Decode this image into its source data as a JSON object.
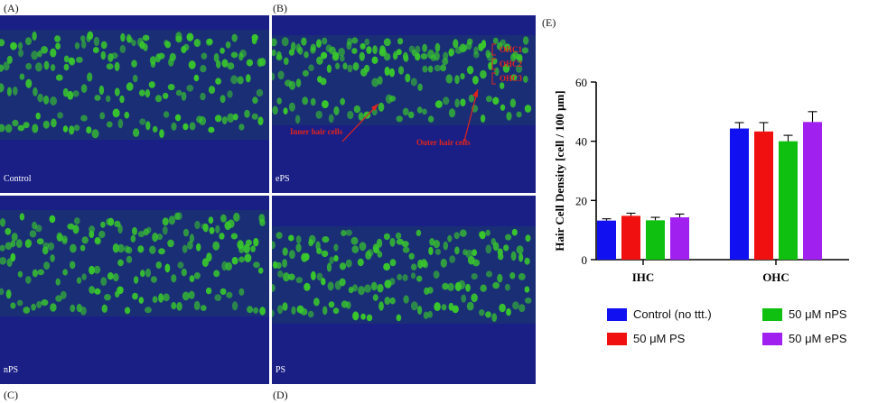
{
  "figure": {
    "panel_letters": {
      "A": "(A)",
      "B": "(B)",
      "C": "(C)",
      "D": "(D)",
      "E": "(E)"
    },
    "images": {
      "A": {
        "caption": "Control"
      },
      "B": {
        "caption": "ePS",
        "annotations": {
          "inner": "Inner hair cells",
          "outer": "Outer hair cells",
          "ohc1": "OHC1",
          "ohc2": "OHC2",
          "ohc3": "OHC3"
        }
      },
      "C": {
        "caption": "nPS"
      },
      "D": {
        "caption": "PS"
      }
    },
    "colors": {
      "tissue_background": "#1a1f86",
      "fluorescence": "#39c82c",
      "annotation": "#e0241c"
    }
  },
  "chart_data": {
    "type": "bar",
    "categories": [
      "IHC",
      "OHC"
    ],
    "ylabel": "Hair Cell Density [cell / 100 μm]",
    "xlabel": "",
    "ylim": [
      0,
      60
    ],
    "yticks": [
      0,
      20,
      40,
      60
    ],
    "legend_position": "bottom",
    "series": [
      {
        "name": "Control (no ttt.)",
        "color": "#1010f0",
        "values": [
          13.2,
          44.3
        ],
        "errors": [
          0.6,
          2.0
        ]
      },
      {
        "name": "50 μM PS",
        "color": "#f01010",
        "values": [
          14.8,
          43.3
        ],
        "errors": [
          0.9,
          3.0
        ]
      },
      {
        "name": "50 μM nPS",
        "color": "#10c010",
        "values": [
          13.3,
          40.0
        ],
        "errors": [
          1.0,
          2.0
        ]
      },
      {
        "name": "50 μM ePS",
        "color": "#a020f0",
        "values": [
          14.3,
          46.5
        ],
        "errors": [
          1.1,
          3.5
        ]
      }
    ]
  }
}
